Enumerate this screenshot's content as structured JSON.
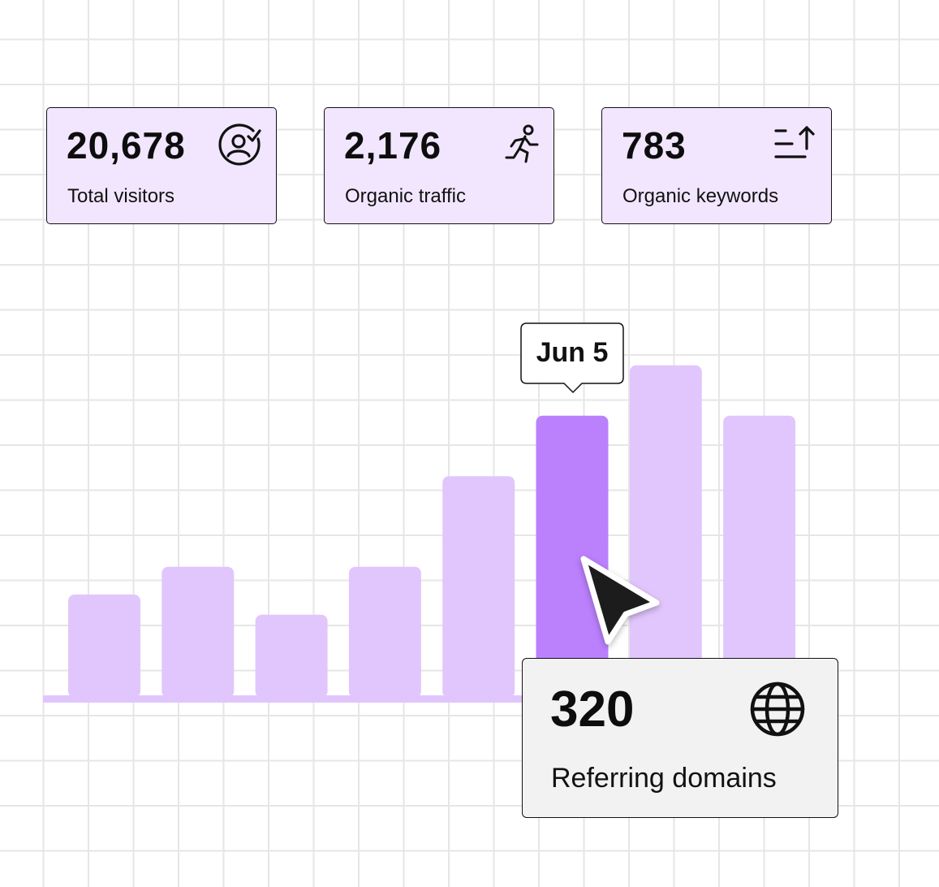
{
  "stats": [
    {
      "value": "20,678",
      "label": "Total visitors",
      "icon": "user-check-icon"
    },
    {
      "value": "2,176",
      "label": "Organic traffic",
      "icon": "running-person-icon"
    },
    {
      "value": "783",
      "label": "Organic keywords",
      "icon": "sort-ascending-icon"
    }
  ],
  "tooltip": {
    "label": "Jun 5"
  },
  "referring": {
    "value": "320",
    "label": "Referring domains",
    "icon": "globe-icon"
  },
  "chart_data": {
    "type": "bar",
    "values": [
      41,
      52,
      33,
      52,
      88,
      112,
      132,
      112
    ],
    "highlight_index": 5,
    "colors": {
      "bar": "#e1c6fd",
      "highlight": "#bb80fc",
      "baseline": "#e1c6fd"
    }
  }
}
